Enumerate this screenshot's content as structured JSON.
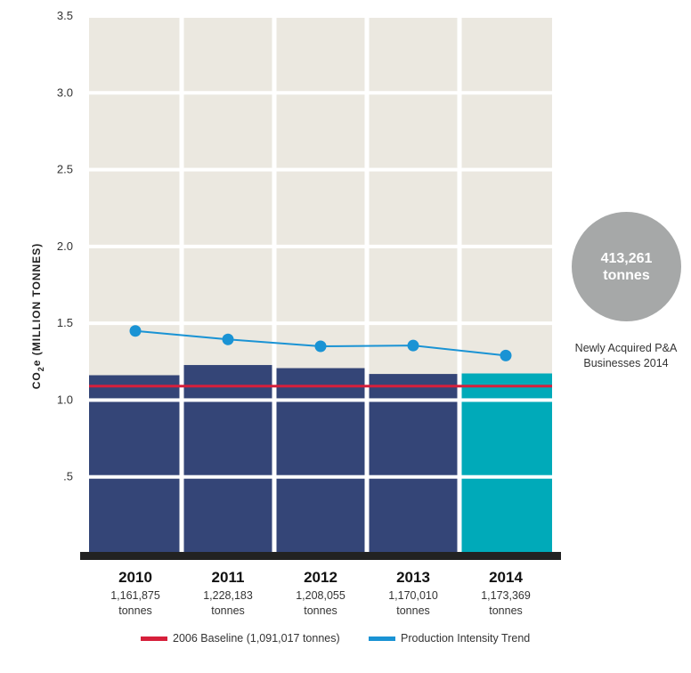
{
  "chart_data": {
    "type": "bar",
    "categories": [
      "2010",
      "2011",
      "2012",
      "2013",
      "2014"
    ],
    "values": [
      1.161875,
      1.228183,
      1.208055,
      1.17001,
      1.173369
    ],
    "value_labels": [
      [
        "1,161,875",
        "tonnes"
      ],
      [
        "1,228,183",
        "tonnes"
      ],
      [
        "1,208,055",
        "tonnes"
      ],
      [
        "1,170,010",
        "tonnes"
      ],
      [
        "1,173,369",
        "tonnes"
      ]
    ],
    "ylabel_main": "CO",
    "ylabel_sub": "2",
    "ylabel_rest": "e (MILLION TONNES)",
    "ylim": [
      0,
      3.5
    ],
    "yticks": [
      0.5,
      1.0,
      1.5,
      2.0,
      2.5,
      3.0,
      3.5
    ],
    "ytick_labels": [
      ".5",
      "1.0",
      "1.5",
      "2.0",
      "2.5",
      "3.0",
      "3.5"
    ],
    "baseline": {
      "value": 1.091017,
      "legend": "2006 Baseline (1,091,017 tonnes)"
    },
    "trend": {
      "legend": "Production Intensity Trend",
      "values": [
        1.45,
        1.395,
        1.35,
        1.355,
        1.29
      ]
    },
    "grid": true,
    "colors": {
      "bar": "#344577",
      "bar_highlight": "#00aab9",
      "plot_bg": "#ebe8e0",
      "baseline": "#d61f3b",
      "trend": "#1a93d4",
      "axis": "#222222",
      "bubble": "#a6a8a8"
    }
  },
  "bubble": {
    "value": "413,261",
    "unit": "tonnes",
    "caption_line1": "Newly Acquired P&A",
    "caption_line2": "Businesses 2014"
  }
}
